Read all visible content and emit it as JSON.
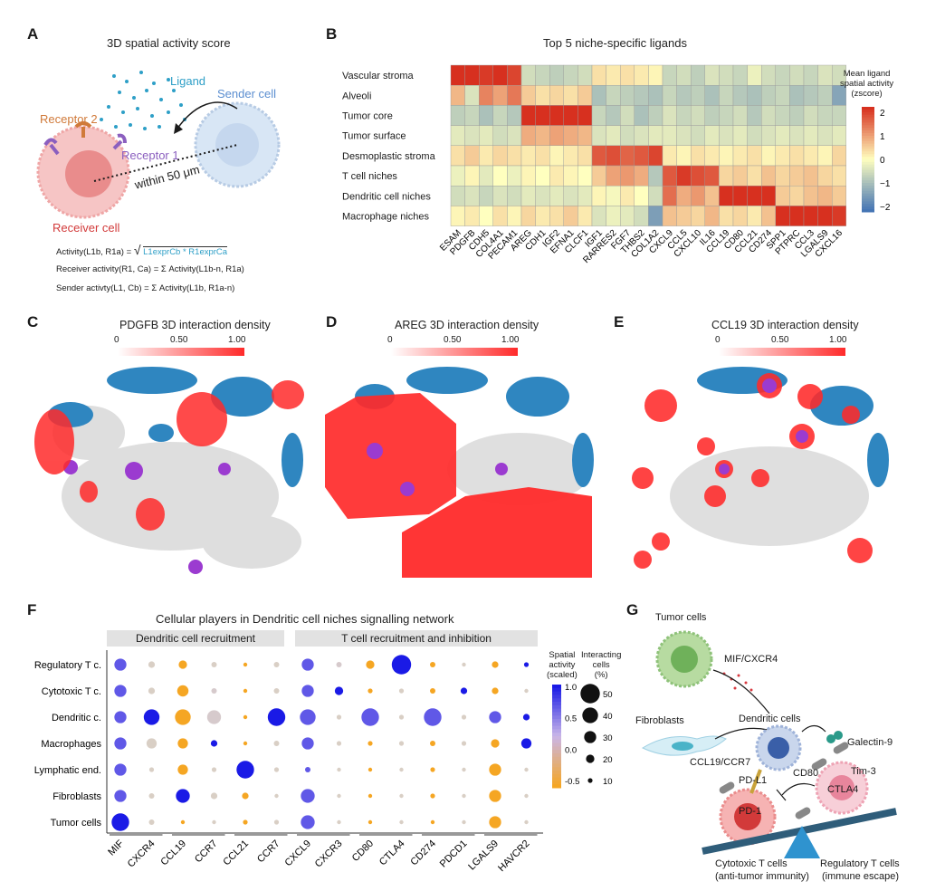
{
  "panelA": {
    "letter": "A",
    "title": "3D spatial activity score",
    "ligand": "Ligand",
    "sender": "Sender cell",
    "receptor2": "Receptor 2",
    "receptor1": "Receptor 1",
    "distance": "within 50 μm",
    "receiver": "Receiver cell",
    "formula_activity_lhs": "Activity(L1b, R1a) =",
    "formula_activity_rhs": "L1exprCb * R1exprCa",
    "formula_receiver": "Receiver activity(R1, Ca) = Σ Activity(L1b-n, R1a)",
    "formula_sender": "Sender activty(L1, Cb) = Σ Activity(L1b, R1a-n)"
  },
  "panelB": {
    "letter": "B",
    "title": "Top 5 niche-specific ligands",
    "legend_title": [
      "Mean ligand",
      "spatial activity",
      "(zscore)"
    ],
    "legend_ticks": [
      "2",
      "1",
      "0",
      "−1",
      "−2"
    ],
    "colors": {
      "high": "#d7301f",
      "mid": "#ffffbf",
      "low": "#4575b4"
    }
  },
  "panelC": {
    "letter": "C",
    "title": "PDGFB 3D interaction density",
    "ticks": [
      "0",
      "0.50",
      "1.00"
    ]
  },
  "panelD": {
    "letter": "D",
    "title": "AREG 3D interaction density",
    "ticks": [
      "0",
      "0.50",
      "1.00"
    ]
  },
  "panelE": {
    "letter": "E",
    "title": "CCL19 3D interaction density",
    "ticks": [
      "0",
      "0.50",
      "1.00"
    ]
  },
  "panelF": {
    "letter": "F",
    "title": "Cellular players in Dendritic cell niches signalling network",
    "group1": "Dendritic cell recruitment",
    "group2": "T cell recruitment and inhibition",
    "legend_color_title": [
      "Spatial",
      "activity",
      "(scaled)"
    ],
    "legend_color_ticks": [
      "1.0",
      "0.5",
      "0.0",
      "-0.5"
    ],
    "legend_size_title": [
      "Interacting",
      "cells",
      "(%)"
    ],
    "legend_size_ticks": [
      "50",
      "40",
      "30",
      "20",
      "10"
    ]
  },
  "panelG": {
    "letter": "G",
    "tumor_cells": "Tumor cells",
    "mif": "MIF/CXCR4",
    "fibroblasts": "Fibroblasts",
    "dendritic": "Dendritic cells",
    "ccl19": "CCL19/CCR7",
    "galectin": "Galectin-9",
    "cd80": "CD80",
    "pdl1": "PD-L1",
    "tim3": "Tim-3",
    "ctla4": "CTLA4",
    "pd1": "PD-1",
    "cyto": "Cytotoxic T cells",
    "cyto_sub": "(anti-tumor immunity)",
    "treg": "Regulatory T cells",
    "treg_sub": "(immune escape)"
  },
  "chart_data": [
    {
      "type": "heatmap",
      "title": "Top 5 niche-specific ligands",
      "rows": [
        "Vascular stroma",
        "Alveoli",
        "Tumor core",
        "Tumor surface",
        "Desmoplastic stroma",
        "T cell niches",
        "Dendritic cell niches",
        "Macrophage niches"
      ],
      "columns": [
        "ESAM",
        "PDGFB",
        "CDH5",
        "COL4A1",
        "PECAM1",
        "AREG",
        "CDH1",
        "IGF2",
        "EFNA1",
        "CLCF1",
        "IGF1",
        "RARRES2",
        "FGF7",
        "THBS2",
        "COL1A2",
        "CXCL9",
        "CCL5",
        "CXCL10",
        "IL16",
        "CCL19",
        "CD80",
        "CCL21",
        "CD274",
        "SPP1",
        "PTPRC",
        "CCL3",
        "LGALS9",
        "CXCL16"
      ],
      "values": [
        [
          2.0,
          2.1,
          1.9,
          2.0,
          1.8,
          -0.5,
          -0.6,
          -0.7,
          -0.6,
          -0.5,
          0.3,
          0.2,
          0.3,
          0.2,
          0.1,
          -0.6,
          -0.5,
          -0.7,
          -0.4,
          -0.5,
          -0.6,
          -0.2,
          -0.5,
          -0.6,
          -0.5,
          -0.6,
          -0.4,
          -0.5
        ],
        [
          0.7,
          -0.4,
          1.2,
          0.9,
          1.3,
          0.5,
          0.3,
          0.4,
          0.3,
          0.5,
          -0.9,
          -0.6,
          -0.7,
          -0.8,
          -0.9,
          -0.6,
          -0.8,
          -0.7,
          -0.9,
          -0.6,
          -0.8,
          -0.9,
          -0.7,
          -0.6,
          -0.9,
          -0.8,
          -0.7,
          -1.3
        ],
        [
          -0.7,
          -0.6,
          -0.9,
          -0.6,
          -0.8,
          2.3,
          2.2,
          2.3,
          2.2,
          2.2,
          -0.6,
          -0.8,
          -0.5,
          -0.9,
          -0.7,
          -0.4,
          -0.6,
          -0.5,
          -0.7,
          -0.6,
          -0.5,
          -0.8,
          -0.5,
          -0.6,
          -0.7,
          -0.5,
          -0.6,
          -0.6
        ],
        [
          -0.3,
          -0.4,
          -0.3,
          -0.5,
          -0.4,
          0.8,
          0.7,
          0.9,
          0.8,
          0.7,
          -0.4,
          -0.3,
          -0.5,
          -0.4,
          -0.3,
          -0.3,
          -0.4,
          -0.5,
          -0.3,
          -0.4,
          -0.3,
          -0.5,
          -0.4,
          -0.3,
          -0.4,
          -0.3,
          -0.4,
          -0.3
        ],
        [
          0.3,
          0.5,
          0.2,
          0.4,
          0.3,
          0.2,
          0.3,
          0.1,
          0.2,
          0.3,
          1.6,
          1.7,
          1.5,
          1.6,
          1.8,
          0.2,
          0.1,
          0.3,
          0.2,
          0.1,
          0.2,
          0.3,
          0.1,
          0.2,
          0.3,
          0.2,
          0.1,
          0.4
        ],
        [
          -0.2,
          0.1,
          -0.3,
          0.0,
          -0.2,
          0.1,
          0.0,
          0.2,
          0.1,
          0.0,
          0.5,
          0.9,
          1.0,
          0.8,
          -0.8,
          1.6,
          1.9,
          1.7,
          1.6,
          0.4,
          0.5,
          0.3,
          0.6,
          0.4,
          0.5,
          0.6,
          0.4,
          0.3
        ],
        [
          -0.5,
          -0.4,
          -0.6,
          -0.4,
          -0.5,
          -0.3,
          -0.4,
          -0.3,
          -0.4,
          -0.3,
          0.1,
          -0.1,
          0.2,
          0.0,
          -0.5,
          1.4,
          0.8,
          1.0,
          0.6,
          2.0,
          2.1,
          2.2,
          2.0,
          0.5,
          0.4,
          0.6,
          0.7,
          0.5
        ],
        [
          0.1,
          0.2,
          0.0,
          0.3,
          0.1,
          0.4,
          0.2,
          0.3,
          0.5,
          0.2,
          -0.4,
          -0.2,
          -0.3,
          -0.5,
          -1.4,
          0.6,
          0.5,
          0.4,
          0.7,
          0.3,
          0.4,
          0.2,
          0.6,
          2.2,
          2.1,
          2.2,
          2.1,
          1.9
        ]
      ],
      "colorbar": {
        "label": "Mean ligand spatial activity (zscore)",
        "range": [
          -2,
          2
        ]
      }
    },
    {
      "type": "scatter",
      "title": "Cellular players in Dendritic cell niches signalling network",
      "rows": [
        "Regulatory T c.",
        "Cytotoxic T c.",
        "Dendritic c.",
        "Macrophages",
        "Lymphatic end.",
        "Fibroblasts",
        "Tumor cells"
      ],
      "columns": [
        "MIF",
        "CXCR4",
        "CCL19",
        "CCR7",
        "CCL21",
        "CCR7",
        "CXCL9",
        "CXCR3",
        "CD80",
        "CTLA4",
        "CD274",
        "PDCD1",
        "LGALS9",
        "HAVCR2"
      ],
      "column_groups": [
        [
          0,
          1
        ],
        [
          2,
          3
        ],
        [
          4,
          5
        ],
        [
          6,
          7
        ],
        [
          8,
          9
        ],
        [
          10,
          11
        ],
        [
          12,
          13
        ]
      ],
      "activity": [
        [
          0.8,
          0.0,
          -0.4,
          0.0,
          -0.4,
          0.0,
          0.8,
          0.1,
          -0.4,
          1.0,
          -0.4,
          0.0,
          -0.4,
          1.0
        ],
        [
          0.8,
          0.0,
          -0.4,
          0.1,
          -0.4,
          0.0,
          0.8,
          1.0,
          -0.4,
          0.0,
          -0.4,
          1.0,
          -0.4,
          0.0
        ],
        [
          0.8,
          1.0,
          -0.4,
          0.1,
          -0.4,
          1.0,
          0.8,
          0.0,
          0.8,
          0.0,
          0.8,
          0.0,
          0.8,
          1.0
        ],
        [
          0.8,
          0.0,
          -0.4,
          1.0,
          -0.4,
          0.0,
          0.8,
          0.0,
          -0.4,
          0.0,
          -0.4,
          0.0,
          -0.4,
          1.0
        ],
        [
          0.8,
          0.0,
          -0.4,
          0.0,
          1.0,
          0.0,
          0.8,
          0.0,
          -0.4,
          0.0,
          -0.4,
          0.0,
          -0.4,
          0.0
        ],
        [
          0.8,
          0.0,
          1.0,
          0.0,
          -0.4,
          0.0,
          0.8,
          0.0,
          -0.4,
          0.0,
          -0.4,
          0.0,
          -0.4,
          0.0
        ],
        [
          1.0,
          0.0,
          -0.4,
          0.0,
          -0.4,
          0.0,
          0.8,
          0.0,
          -0.4,
          0.0,
          -0.4,
          0.0,
          -0.4,
          0.0
        ]
      ],
      "pct": [
        [
          30,
          15,
          20,
          12,
          8,
          12,
          30,
          12,
          20,
          50,
          12,
          8,
          15,
          10
        ],
        [
          30,
          15,
          28,
          12,
          8,
          12,
          30,
          20,
          10,
          10,
          12,
          15,
          15,
          8
        ],
        [
          30,
          40,
          40,
          35,
          8,
          45,
          40,
          10,
          45,
          10,
          45,
          10,
          30,
          15
        ],
        [
          30,
          25,
          25,
          15,
          8,
          12,
          30,
          10,
          10,
          10,
          12,
          10,
          20,
          25
        ],
        [
          30,
          10,
          25,
          10,
          45,
          10,
          12,
          8,
          8,
          8,
          10,
          8,
          30,
          8
        ],
        [
          30,
          12,
          35,
          15,
          15,
          8,
          35,
          8,
          8,
          8,
          10,
          8,
          30,
          8
        ],
        [
          45,
          12,
          8,
          8,
          10,
          10,
          35,
          8,
          8,
          8,
          8,
          8,
          30,
          8
        ]
      ],
      "legend": {
        "color": "Spatial activity (scaled)",
        "color_range": [
          -0.5,
          1.0
        ],
        "size": "Interacting cells (%)",
        "size_range": [
          10,
          50
        ]
      }
    }
  ]
}
